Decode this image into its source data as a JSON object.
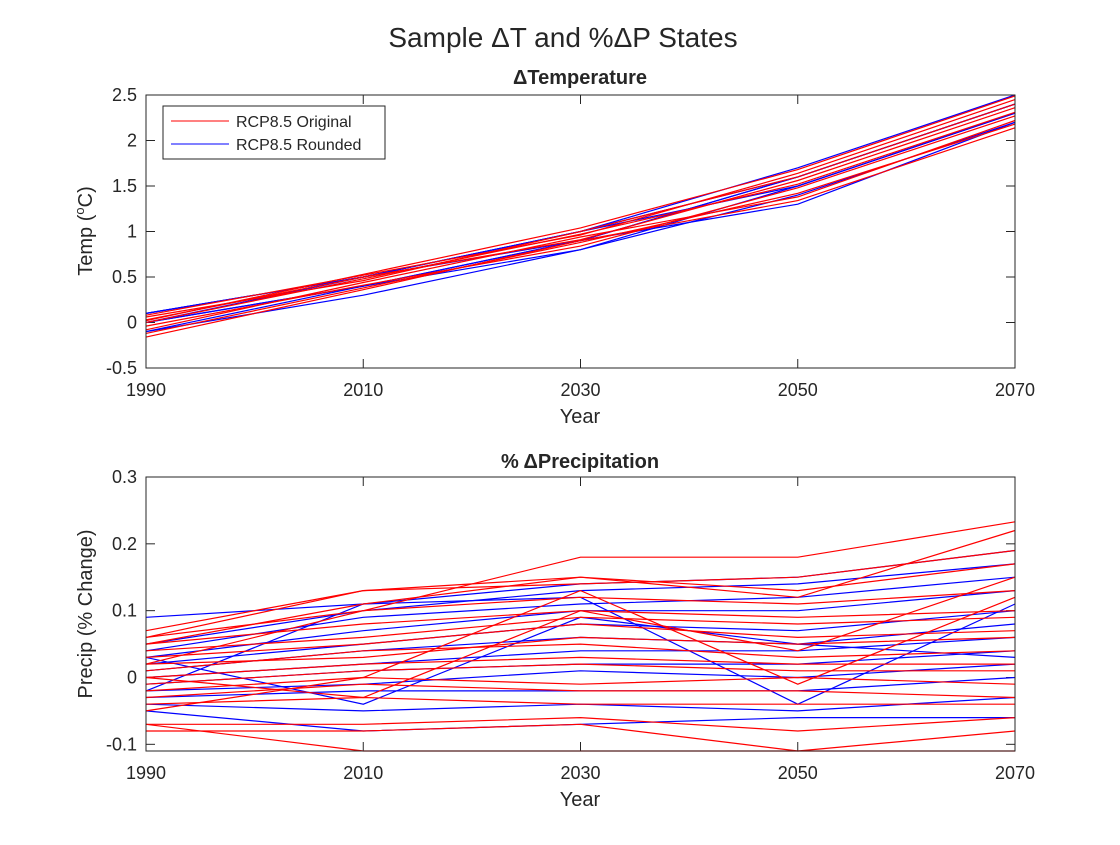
{
  "figure": {
    "title_prefix": "Sample ",
    "title_delta1": "Δ",
    "title_mid": "T and %",
    "title_delta2": "Δ",
    "title_suffix": "P States"
  },
  "chart_data": [
    {
      "type": "line",
      "title_delta": "Δ",
      "title_text": "Temperature",
      "xlabel": "Year",
      "ylabel_pre": "Temp (",
      "ylabel_sup": "o",
      "ylabel_post": "C)",
      "xlim": [
        1990,
        2070
      ],
      "ylim": [
        -0.5,
        2.5
      ],
      "xticks": [
        1990,
        2010,
        2030,
        2050,
        2070
      ],
      "yticks": [
        -0.5,
        0,
        0.5,
        1,
        1.5,
        2,
        2.5
      ],
      "x": [
        1990,
        2010,
        2030,
        2050,
        2070
      ],
      "legend": {
        "placement": "top-left",
        "entries": [
          {
            "label": "RCP8.5 Original",
            "color": "#ff0000"
          },
          {
            "label": "RCP8.5 Rounded",
            "color": "#0000ff"
          }
        ]
      },
      "series": [
        {
          "group": "original",
          "color": "#ff0000",
          "values": [
            -0.16,
            0.36,
            0.9,
            1.34,
            2.14
          ]
        },
        {
          "group": "original",
          "color": "#ff0000",
          "values": [
            -0.12,
            0.38,
            0.88,
            1.42,
            2.18
          ]
        },
        {
          "group": "original",
          "color": "#ff0000",
          "values": [
            -0.08,
            0.44,
            0.94,
            1.38,
            2.22
          ]
        },
        {
          "group": "original",
          "color": "#ff0000",
          "values": [
            -0.04,
            0.41,
            0.84,
            1.48,
            2.27
          ]
        },
        {
          "group": "original",
          "color": "#ff0000",
          "values": [
            0.0,
            0.48,
            0.97,
            1.52,
            2.31
          ]
        },
        {
          "group": "original",
          "color": "#ff0000",
          "values": [
            0.03,
            0.5,
            0.91,
            1.56,
            2.36
          ]
        },
        {
          "group": "original",
          "color": "#ff0000",
          "values": [
            0.06,
            0.46,
            1.0,
            1.6,
            2.4
          ]
        },
        {
          "group": "original",
          "color": "#ff0000",
          "values": [
            0.08,
            0.52,
            0.96,
            1.64,
            2.45
          ]
        },
        {
          "group": "original",
          "color": "#ff0000",
          "values": [
            0.02,
            0.53,
            1.04,
            1.68,
            2.49
          ]
        },
        {
          "group": "rounded",
          "color": "#0000ff",
          "values": [
            -0.1,
            0.3,
            0.8,
            1.4,
            2.2
          ]
        },
        {
          "group": "rounded",
          "color": "#0000ff",
          "values": [
            -0.1,
            0.4,
            0.9,
            1.3,
            2.2
          ]
        },
        {
          "group": "rounded",
          "color": "#0000ff",
          "values": [
            0.0,
            0.4,
            0.8,
            1.5,
            2.3
          ]
        },
        {
          "group": "rounded",
          "color": "#0000ff",
          "values": [
            0.0,
            0.5,
            1.0,
            1.5,
            2.3
          ]
        },
        {
          "group": "rounded",
          "color": "#0000ff",
          "values": [
            0.0,
            0.4,
            0.9,
            1.6,
            2.4
          ]
        },
        {
          "group": "rounded",
          "color": "#0000ff",
          "values": [
            0.1,
            0.5,
            0.9,
            1.6,
            2.4
          ]
        },
        {
          "group": "rounded",
          "color": "#0000ff",
          "values": [
            0.1,
            0.5,
            1.0,
            1.6,
            2.4
          ]
        },
        {
          "group": "rounded",
          "color": "#0000ff",
          "values": [
            0.1,
            0.5,
            1.0,
            1.7,
            2.5
          ]
        }
      ]
    },
    {
      "type": "line",
      "title_pct": "% ",
      "title_delta": "Δ",
      "title_text": "Precipitation",
      "xlabel": "Year",
      "ylabel": "Precip (% Change)",
      "xlim": [
        1990,
        2070
      ],
      "ylim": [
        -0.11,
        0.3
      ],
      "xticks": [
        1990,
        2010,
        2030,
        2050,
        2070
      ],
      "yticks": [
        -0.1,
        0,
        0.1,
        0.2,
        0.3
      ],
      "x": [
        1990,
        2010,
        2030,
        2050,
        2070
      ],
      "series": [
        {
          "group": "original",
          "color": "#ff0000",
          "values": [
            -0.07,
            -0.11,
            -0.11,
            -0.11,
            -0.08
          ]
        },
        {
          "group": "original",
          "color": "#ff0000",
          "values": [
            -0.08,
            -0.08,
            -0.07,
            -0.11,
            -0.11
          ]
        },
        {
          "group": "original",
          "color": "#ff0000",
          "values": [
            -0.07,
            -0.07,
            -0.06,
            -0.08,
            -0.06
          ]
        },
        {
          "group": "original",
          "color": "#ff0000",
          "values": [
            -0.04,
            -0.03,
            -0.04,
            -0.04,
            -0.04
          ]
        },
        {
          "group": "original",
          "color": "#ff0000",
          "values": [
            -0.03,
            -0.01,
            -0.02,
            -0.02,
            -0.03
          ]
        },
        {
          "group": "original",
          "color": "#ff0000",
          "values": [
            -0.02,
            0.0,
            -0.01,
            0.0,
            -0.01
          ]
        },
        {
          "group": "original",
          "color": "#ff0000",
          "values": [
            -0.01,
            0.01,
            0.02,
            0.01,
            0.01
          ]
        },
        {
          "group": "original",
          "color": "#ff0000",
          "values": [
            0.0,
            0.02,
            0.03,
            0.02,
            0.02
          ]
        },
        {
          "group": "original",
          "color": "#ff0000",
          "values": [
            0.01,
            0.04,
            0.05,
            0.03,
            0.04
          ]
        },
        {
          "group": "original",
          "color": "#ff0000",
          "values": [
            0.02,
            0.03,
            0.06,
            0.05,
            0.06
          ]
        },
        {
          "group": "original",
          "color": "#ff0000",
          "values": [
            0.03,
            0.05,
            0.08,
            0.06,
            0.07
          ]
        },
        {
          "group": "original",
          "color": "#ff0000",
          "values": [
            0.04,
            0.06,
            0.09,
            0.08,
            0.09
          ]
        },
        {
          "group": "original",
          "color": "#ff0000",
          "values": [
            0.05,
            0.08,
            0.1,
            0.09,
            0.1
          ]
        },
        {
          "group": "original",
          "color": "#ff0000",
          "values": [
            0.06,
            0.1,
            0.12,
            0.11,
            0.13
          ]
        },
        {
          "group": "original",
          "color": "#ff0000",
          "values": [
            0.06,
            0.13,
            0.15,
            0.13,
            0.17
          ]
        },
        {
          "group": "original",
          "color": "#ff0000",
          "values": [
            0.02,
            0.1,
            0.18,
            0.18,
            0.233
          ]
        },
        {
          "group": "original",
          "color": "#ff0000",
          "values": [
            0.05,
            0.11,
            0.15,
            0.12,
            0.22
          ]
        },
        {
          "group": "original",
          "color": "#ff0000",
          "values": [
            0.07,
            0.13,
            0.14,
            0.15,
            0.19
          ]
        },
        {
          "group": "original",
          "color": "#ff0000",
          "values": [
            0.0,
            -0.03,
            0.1,
            0.04,
            0.15
          ]
        },
        {
          "group": "original",
          "color": "#ff0000",
          "values": [
            -0.05,
            0.0,
            0.13,
            -0.01,
            0.12
          ]
        },
        {
          "group": "rounded",
          "color": "#0000ff",
          "values": [
            0.09,
            0.11,
            0.14,
            0.15,
            0.19
          ]
        },
        {
          "group": "rounded",
          "color": "#0000ff",
          "values": [
            0.05,
            0.1,
            0.13,
            0.14,
            0.17
          ]
        },
        {
          "group": "rounded",
          "color": "#0000ff",
          "values": [
            0.04,
            0.09,
            0.11,
            0.12,
            0.15
          ]
        },
        {
          "group": "rounded",
          "color": "#0000ff",
          "values": [
            0.03,
            0.07,
            0.1,
            0.1,
            0.13
          ]
        },
        {
          "group": "rounded",
          "color": "#0000ff",
          "values": [
            0.02,
            0.05,
            0.08,
            0.07,
            0.1
          ]
        },
        {
          "group": "rounded",
          "color": "#0000ff",
          "values": [
            0.01,
            0.04,
            0.06,
            0.05,
            0.08
          ]
        },
        {
          "group": "rounded",
          "color": "#0000ff",
          "values": [
            0.0,
            0.02,
            0.04,
            0.04,
            0.06
          ]
        },
        {
          "group": "rounded",
          "color": "#0000ff",
          "values": [
            -0.01,
            0.01,
            0.02,
            0.02,
            0.04
          ]
        },
        {
          "group": "rounded",
          "color": "#0000ff",
          "values": [
            -0.02,
            -0.01,
            0.01,
            0.0,
            0.02
          ]
        },
        {
          "group": "rounded",
          "color": "#0000ff",
          "values": [
            -0.03,
            -0.02,
            -0.02,
            -0.02,
            0.0
          ]
        },
        {
          "group": "rounded",
          "color": "#0000ff",
          "values": [
            -0.04,
            -0.05,
            -0.04,
            -0.05,
            -0.03
          ]
        },
        {
          "group": "rounded",
          "color": "#0000ff",
          "values": [
            -0.05,
            -0.08,
            -0.07,
            -0.06,
            -0.06
          ]
        },
        {
          "group": "rounded",
          "color": "#0000ff",
          "values": [
            -0.02,
            0.11,
            0.12,
            -0.04,
            0.11
          ]
        },
        {
          "group": "rounded",
          "color": "#0000ff",
          "values": [
            0.03,
            -0.04,
            0.09,
            0.05,
            0.03
          ]
        }
      ]
    }
  ]
}
